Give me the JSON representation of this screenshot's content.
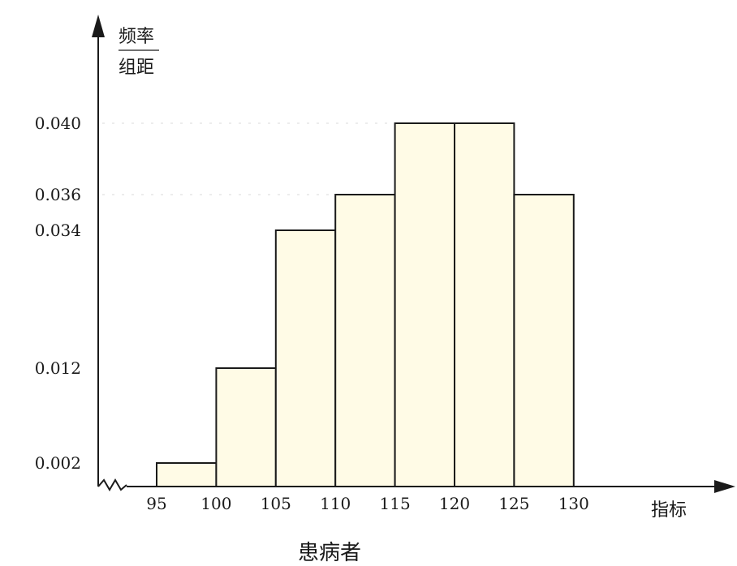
{
  "chart_data": {
    "type": "bar",
    "title": "患病者",
    "xlabel": "指标",
    "ylabel_top": "频率",
    "ylabel_bottom": "组距",
    "x_ticks": [
      "95",
      "100",
      "105",
      "110",
      "115",
      "120",
      "125",
      "130"
    ],
    "y_ticks": [
      "0.002",
      "0.012",
      "0.034",
      "0.036",
      "0.040"
    ],
    "bins": [
      {
        "from": 95,
        "to": 100,
        "value": 0.002
      },
      {
        "from": 100,
        "to": 105,
        "value": 0.012
      },
      {
        "from": 105,
        "to": 110,
        "value": 0.034
      },
      {
        "from": 110,
        "to": 115,
        "value": 0.036
      },
      {
        "from": 115,
        "to": 120,
        "value": 0.04
      },
      {
        "from": 120,
        "to": 125,
        "value": 0.04
      },
      {
        "from": 125,
        "to": 130,
        "value": 0.036
      }
    ],
    "xlim": [
      95,
      130
    ],
    "ylim": [
      0,
      0.04
    ],
    "grid": false,
    "colors": {
      "bar_fill": "#fffbe6",
      "bar_stroke": "#1a1a1a",
      "axis": "#1a1a1a",
      "guide": "#d9d9d9"
    }
  }
}
